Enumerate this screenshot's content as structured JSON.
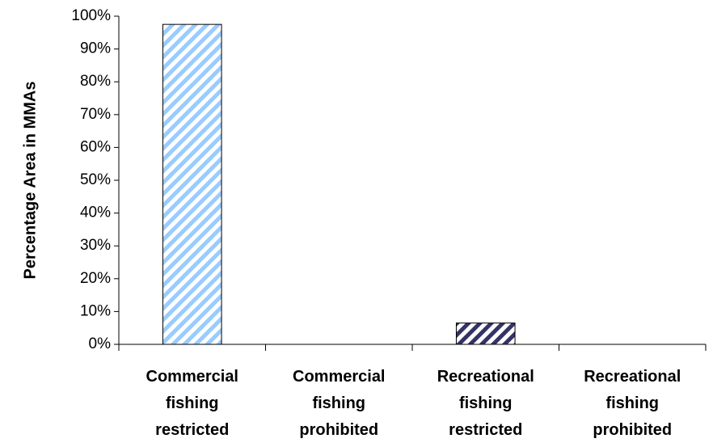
{
  "chart_data": {
    "type": "bar",
    "y_label": "Percentage Area in MMAs",
    "categories": [
      "Commercial fishing restricted",
      "Commercial fishing prohibited",
      "Recreational fishing restricted",
      "Recreational fishing prohibited"
    ],
    "values": [
      97.5,
      0,
      6.5,
      0
    ],
    "colors": [
      "#99ccff",
      "#99ccff",
      "#333366",
      "#333366"
    ],
    "ylim": [
      0,
      100
    ],
    "yticks": [
      {
        "value": 0,
        "label": "0%"
      },
      {
        "value": 10,
        "label": "10%"
      },
      {
        "value": 20,
        "label": "20%"
      },
      {
        "value": 30,
        "label": "30%"
      },
      {
        "value": 40,
        "label": "40%"
      },
      {
        "value": 50,
        "label": "50%"
      },
      {
        "value": 60,
        "label": "60%"
      },
      {
        "value": 70,
        "label": "70%"
      },
      {
        "value": 80,
        "label": "80%"
      },
      {
        "value": 90,
        "label": "90%"
      },
      {
        "value": 100,
        "label": "100%"
      }
    ],
    "grid": false
  }
}
